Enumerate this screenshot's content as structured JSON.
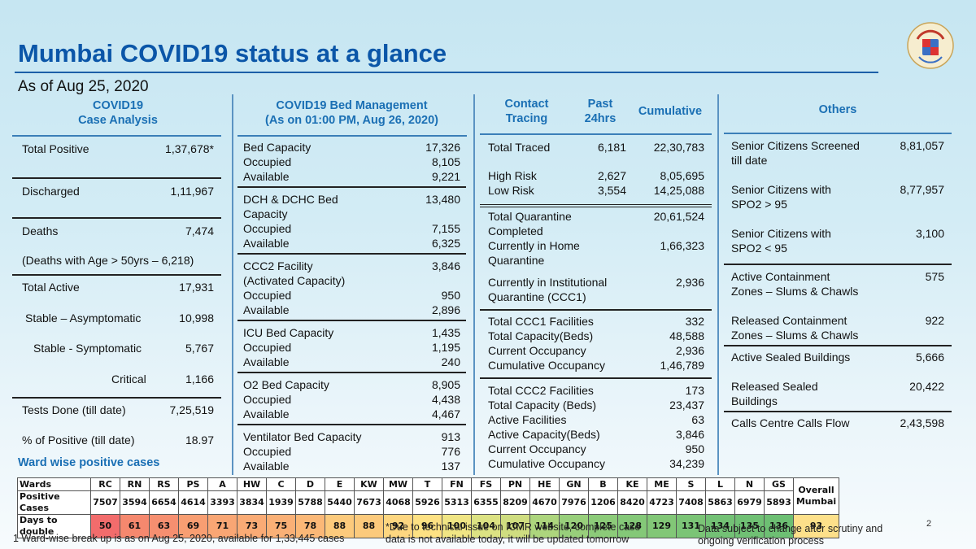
{
  "header": {
    "title": "Mumbai COVID19 status at a glance",
    "as_of": "As of Aug 25, 2020"
  },
  "case_analysis": {
    "heading_line1": "COVID19",
    "heading_line2": "Case Analysis",
    "total_positive": {
      "label": "Total Positive",
      "value": "1,37,678*"
    },
    "discharged": {
      "label": "Discharged",
      "value": "1,11,967"
    },
    "deaths": {
      "label": "Deaths",
      "value": "7,474"
    },
    "deaths_note": "(Deaths with Age > 50yrs – 6,218)",
    "total_active": {
      "label": "Total Active",
      "value": "17,931"
    },
    "stable_asym": {
      "label": "Stable – Asymptomatic",
      "value": "10,998"
    },
    "stable_sym": {
      "label": "Stable - Symptomatic",
      "value": "5,767"
    },
    "critical": {
      "label": "Critical",
      "value": "1,166"
    },
    "tests_done": {
      "label": "Tests Done (till date)",
      "value": "7,25,519"
    },
    "pct_positive": {
      "label": "% of Positive (till date)",
      "value": "18.97"
    }
  },
  "bed_management": {
    "heading_line1": "COVID19 Bed Management",
    "heading_line2": "(As on 01:00 PM, Aug 26, 2020)",
    "groups": [
      {
        "rows": [
          {
            "label": "Bed Capacity",
            "value": "17,326"
          },
          {
            "label": "Occupied",
            "value": "8,105"
          },
          {
            "label": "Available",
            "value": "9,221"
          }
        ]
      },
      {
        "rows": [
          {
            "label": "DCH & DCHC Bed",
            "value": "13,480"
          },
          {
            "label": "Capacity",
            "value": ""
          },
          {
            "label": "Occupied",
            "value": "7,155"
          },
          {
            "label": "Available",
            "value": "6,325"
          }
        ]
      },
      {
        "rows": [
          {
            "label": "CCC2 Facility",
            "value": "3,846"
          },
          {
            "label": "(Activated Capacity)",
            "value": ""
          },
          {
            "label": "Occupied",
            "value": "950"
          },
          {
            "label": "Available",
            "value": "2,896"
          }
        ]
      },
      {
        "rows": [
          {
            "label": "ICU Bed Capacity",
            "value": "1,435"
          },
          {
            "label": "Occupied",
            "value": "1,195"
          },
          {
            "label": "Available",
            "value": "240"
          }
        ]
      },
      {
        "rows": [
          {
            "label": "O2 Bed Capacity",
            "value": "8,905"
          },
          {
            "label": "Occupied",
            "value": "4,438"
          },
          {
            "label": "Available",
            "value": "4,467"
          }
        ]
      },
      {
        "rows": [
          {
            "label": "Ventilator Bed Capacity",
            "value": "913"
          },
          {
            "label": "Occupied",
            "value": "776"
          },
          {
            "label": "Available",
            "value": "137"
          }
        ]
      }
    ]
  },
  "contact_tracing": {
    "heading_contact_line1": "Contact",
    "heading_contact_line2": "Tracing",
    "heading_past_line1": "Past",
    "heading_past_line2": "24hrs",
    "heading_cumulative": "Cumulative",
    "total_traced": {
      "label": "Total Traced",
      "past": "6,181",
      "cumulative": "22,30,783"
    },
    "high_risk": {
      "label": "High Risk",
      "past": "2,627",
      "cumulative": "8,05,695"
    },
    "low_risk": {
      "label": "Low Risk",
      "past": "3,554",
      "cumulative": "14,25,088"
    },
    "quarantine_completed": {
      "label_line1": "Total Quarantine",
      "label_line2": "Completed",
      "value": "20,61,524"
    },
    "home_quarantine": {
      "label_line1": "Currently in Home",
      "label_line2": "Quarantine",
      "value": "1,66,323"
    },
    "institutional": {
      "label_line1": "Currently in Institutional",
      "label_line2": "Quarantine (CCC1)",
      "value": "2,936"
    },
    "ccc1": [
      {
        "label": "Total CCC1 Facilities",
        "value": "332"
      },
      {
        "label": "Total Capacity(Beds)",
        "value": "48,588"
      },
      {
        "label": "Current Occupancy",
        "value": "2,936"
      },
      {
        "label": "Cumulative Occupancy",
        "value": "1,46,789"
      }
    ],
    "ccc2": [
      {
        "label": "Total CCC2 Facilities",
        "value": "173"
      },
      {
        "label": "Total Capacity (Beds)",
        "value": "23,437"
      },
      {
        "label": "Active Facilities",
        "value": "63"
      },
      {
        "label": "Active Capacity(Beds)",
        "value": "3,846"
      },
      {
        "label": "Current Occupancy",
        "value": "950"
      },
      {
        "label": "Cumulative Occupancy",
        "value": "34,239"
      }
    ]
  },
  "others": {
    "heading": "Others",
    "screened": {
      "label_line1": "Senior Citizens Screened",
      "label_line2": "till date",
      "value": "8,81,057"
    },
    "spo2_high": {
      "label_line1": "Senior Citizens with",
      "label_line2": "SPO2 > 95",
      "value": "8,77,957"
    },
    "spo2_low": {
      "label_line1": "Senior Citizens with",
      "label_line2": "SPO2 < 95",
      "value": "3,100"
    },
    "active_zones": {
      "label_line1": "Active Containment",
      "label_line2": "Zones – Slums & Chawls",
      "value": "575"
    },
    "released_zones": {
      "label_line1": "Released Containment",
      "label_line2": "Zones – Slums & Chawls",
      "value": "922"
    },
    "active_sealed": {
      "label": "Active Sealed Buildings",
      "value": "5,666"
    },
    "released_sealed": {
      "label_line1": "Released Sealed",
      "label_line2": "Buildings",
      "value": "20,422"
    },
    "calls": {
      "label": "Calls Centre Calls Flow",
      "value": "2,43,598"
    }
  },
  "wards": {
    "title": "Ward wise positive cases",
    "row_labels": [
      "Wards",
      "Positive Cases",
      "Days to double"
    ],
    "overall_label_line1": "Overall",
    "overall_label_line2": "Mumbai",
    "overall_days": "93",
    "overall_color": "#fde08a",
    "columns": [
      {
        "ward": "RC",
        "cases": "7507",
        "days": "50",
        "color": "#f26c6c"
      },
      {
        "ward": "RN",
        "cases": "3594",
        "days": "61",
        "color": "#f5886e"
      },
      {
        "ward": "RS",
        "cases": "6654",
        "days": "63",
        "color": "#f68f70"
      },
      {
        "ward": "PS",
        "cases": "4614",
        "days": "69",
        "color": "#f89e72"
      },
      {
        "ward": "A",
        "cases": "3393",
        "days": "71",
        "color": "#f9a674"
      },
      {
        "ward": "HW",
        "cases": "3834",
        "days": "73",
        "color": "#faab75"
      },
      {
        "ward": "C",
        "cases": "1939",
        "days": "75",
        "color": "#fab076"
      },
      {
        "ward": "D",
        "cases": "5788",
        "days": "78",
        "color": "#fbb877"
      },
      {
        "ward": "E",
        "cases": "5440",
        "days": "88",
        "color": "#fcca7c"
      },
      {
        "ward": "KW",
        "cases": "7673",
        "days": "88",
        "color": "#fcca7c"
      },
      {
        "ward": "MW",
        "cases": "4068",
        "days": "92",
        "color": "#fdd680"
      },
      {
        "ward": "T",
        "cases": "5926",
        "days": "96",
        "color": "#fde183"
      },
      {
        "ward": "FN",
        "cases": "5313",
        "days": "100",
        "color": "#f0e584"
      },
      {
        "ward": "FS",
        "cases": "6355",
        "days": "104",
        "color": "#dce283"
      },
      {
        "ward": "PN",
        "cases": "8209",
        "days": "107",
        "color": "#cfdd80"
      },
      {
        "ward": "HE",
        "cases": "4670",
        "days": "114",
        "color": "#add57d"
      },
      {
        "ward": "GN",
        "cases": "7976",
        "days": "120",
        "color": "#98cf7b"
      },
      {
        "ward": "B",
        "cases": "1206",
        "days": "125",
        "color": "#8ccb79"
      },
      {
        "ward": "KE",
        "cases": "8420",
        "days": "128",
        "color": "#84c878"
      },
      {
        "ward": "ME",
        "cases": "4723",
        "days": "129",
        "color": "#82c777"
      },
      {
        "ward": "S",
        "cases": "7408",
        "days": "131",
        "color": "#7bc476"
      },
      {
        "ward": "L",
        "cases": "5863",
        "days": "134",
        "color": "#73c175"
      },
      {
        "ward": "N",
        "cases": "6979",
        "days": "135",
        "color": "#70c074"
      },
      {
        "ward": "GS",
        "cases": "5893",
        "days": "136",
        "color": "#6dbf73"
      }
    ]
  },
  "footnotes": {
    "ward_note": "1 Ward-wise break up is as on Aug 25, 2020, available for 1,33,445 cases",
    "icmr_line1": "*Due to technical issue on ICMR website, complete case",
    "icmr_line2": "data is not available today, it will be updated tomorrow",
    "subject_line1": "Data subject to change after scrutiny and",
    "subject_line2": "ongoing verification process",
    "superscript": "2"
  }
}
